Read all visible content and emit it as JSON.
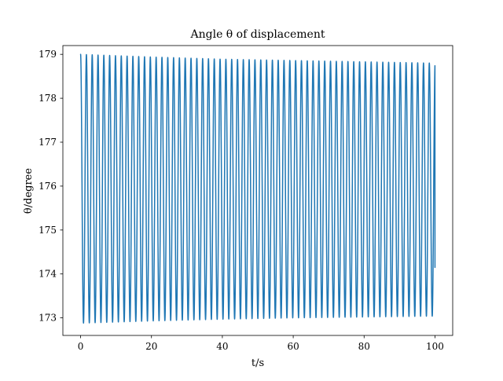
{
  "chart_data": {
    "type": "line",
    "title": "Angle θ of displacement",
    "xlabel": "t/s",
    "ylabel": "θ/degree",
    "xlim": [
      -5,
      105
    ],
    "ylim": [
      172.6,
      179.2
    ],
    "xticks": [
      0,
      20,
      40,
      60,
      80,
      100
    ],
    "yticks": [
      173,
      174,
      175,
      176,
      177,
      178,
      179
    ],
    "xtick_labels": [
      "0",
      "20",
      "40",
      "60",
      "80",
      "100"
    ],
    "ytick_labels": [
      "173",
      "174",
      "175",
      "176",
      "177",
      "178",
      "179"
    ],
    "grid": false,
    "series": [
      {
        "color": "#1f77b4",
        "oscillation_count": 61,
        "period": 1.64,
        "t_start": 0,
        "t_end": 100,
        "start_value": 179.0,
        "end_value": 174.15,
        "max_values": {
          "t": [
            0,
            20,
            40,
            60,
            80,
            100
          ],
          "theta": [
            179.0,
            178.94,
            178.89,
            178.86,
            178.83,
            178.8
          ]
        },
        "min_values": {
          "t": [
            0,
            20,
            40,
            60,
            80,
            100
          ],
          "theta": [
            172.88,
            172.93,
            172.97,
            173.0,
            173.02,
            173.04
          ]
        }
      }
    ]
  }
}
